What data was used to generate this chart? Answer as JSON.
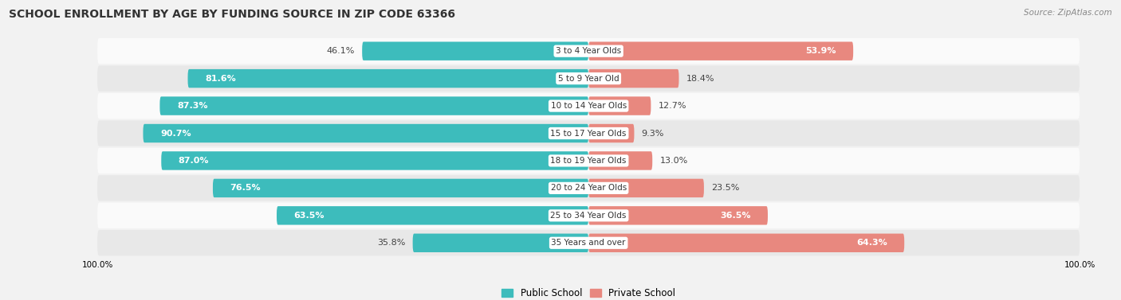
{
  "title": "SCHOOL ENROLLMENT BY AGE BY FUNDING SOURCE IN ZIP CODE 63366",
  "source": "Source: ZipAtlas.com",
  "categories": [
    "3 to 4 Year Olds",
    "5 to 9 Year Old",
    "10 to 14 Year Olds",
    "15 to 17 Year Olds",
    "18 to 19 Year Olds",
    "20 to 24 Year Olds",
    "25 to 34 Year Olds",
    "35 Years and over"
  ],
  "public_values": [
    46.1,
    81.6,
    87.3,
    90.7,
    87.0,
    76.5,
    63.5,
    35.8
  ],
  "private_values": [
    53.9,
    18.4,
    12.7,
    9.3,
    13.0,
    23.5,
    36.5,
    64.3
  ],
  "public_color": "#3dbcbc",
  "private_color": "#e8887f",
  "public_label": "Public School",
  "private_label": "Private School",
  "background_color": "#f2f2f2",
  "row_bg_light": "#fafafa",
  "row_bg_dark": "#e8e8e8",
  "title_fontsize": 10,
  "bar_label_fontsize": 8,
  "source_fontsize": 7.5,
  "axis_label_fontsize": 7.5,
  "public_inside_threshold": 55,
  "private_inside_threshold": 30
}
